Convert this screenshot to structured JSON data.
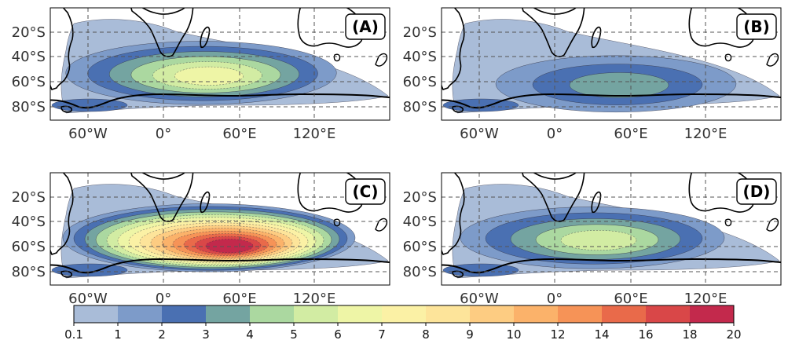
{
  "panels": [
    {
      "label": "(A)"
    },
    {
      "label": "(B)"
    },
    {
      "label": "(C)"
    },
    {
      "label": "(D)"
    }
  ],
  "axes": {
    "lat_ticks": [
      "20°S",
      "40°S",
      "60°S",
      "80°S"
    ],
    "lon_ticks": [
      "60°W",
      "0°",
      "60°E",
      "120°E"
    ]
  },
  "colorbar": {
    "ticks": [
      "0.1",
      "1",
      "2",
      "3",
      "4",
      "5",
      "6",
      "7",
      "8",
      "9",
      "10",
      "12",
      "14",
      "16",
      "18",
      "20"
    ],
    "colors": [
      "#a9bcd8",
      "#7d9bc9",
      "#4a70b2",
      "#74a4a1",
      "#abd8a0",
      "#d2eca3",
      "#eef5a6",
      "#fbf1a5",
      "#fde49a",
      "#fdcc82",
      "#fbb26a",
      "#f69357",
      "#e96a4a",
      "#d94748",
      "#c3294c"
    ]
  },
  "style": {
    "coastline": "#000000",
    "gridline": "#555555"
  }
}
